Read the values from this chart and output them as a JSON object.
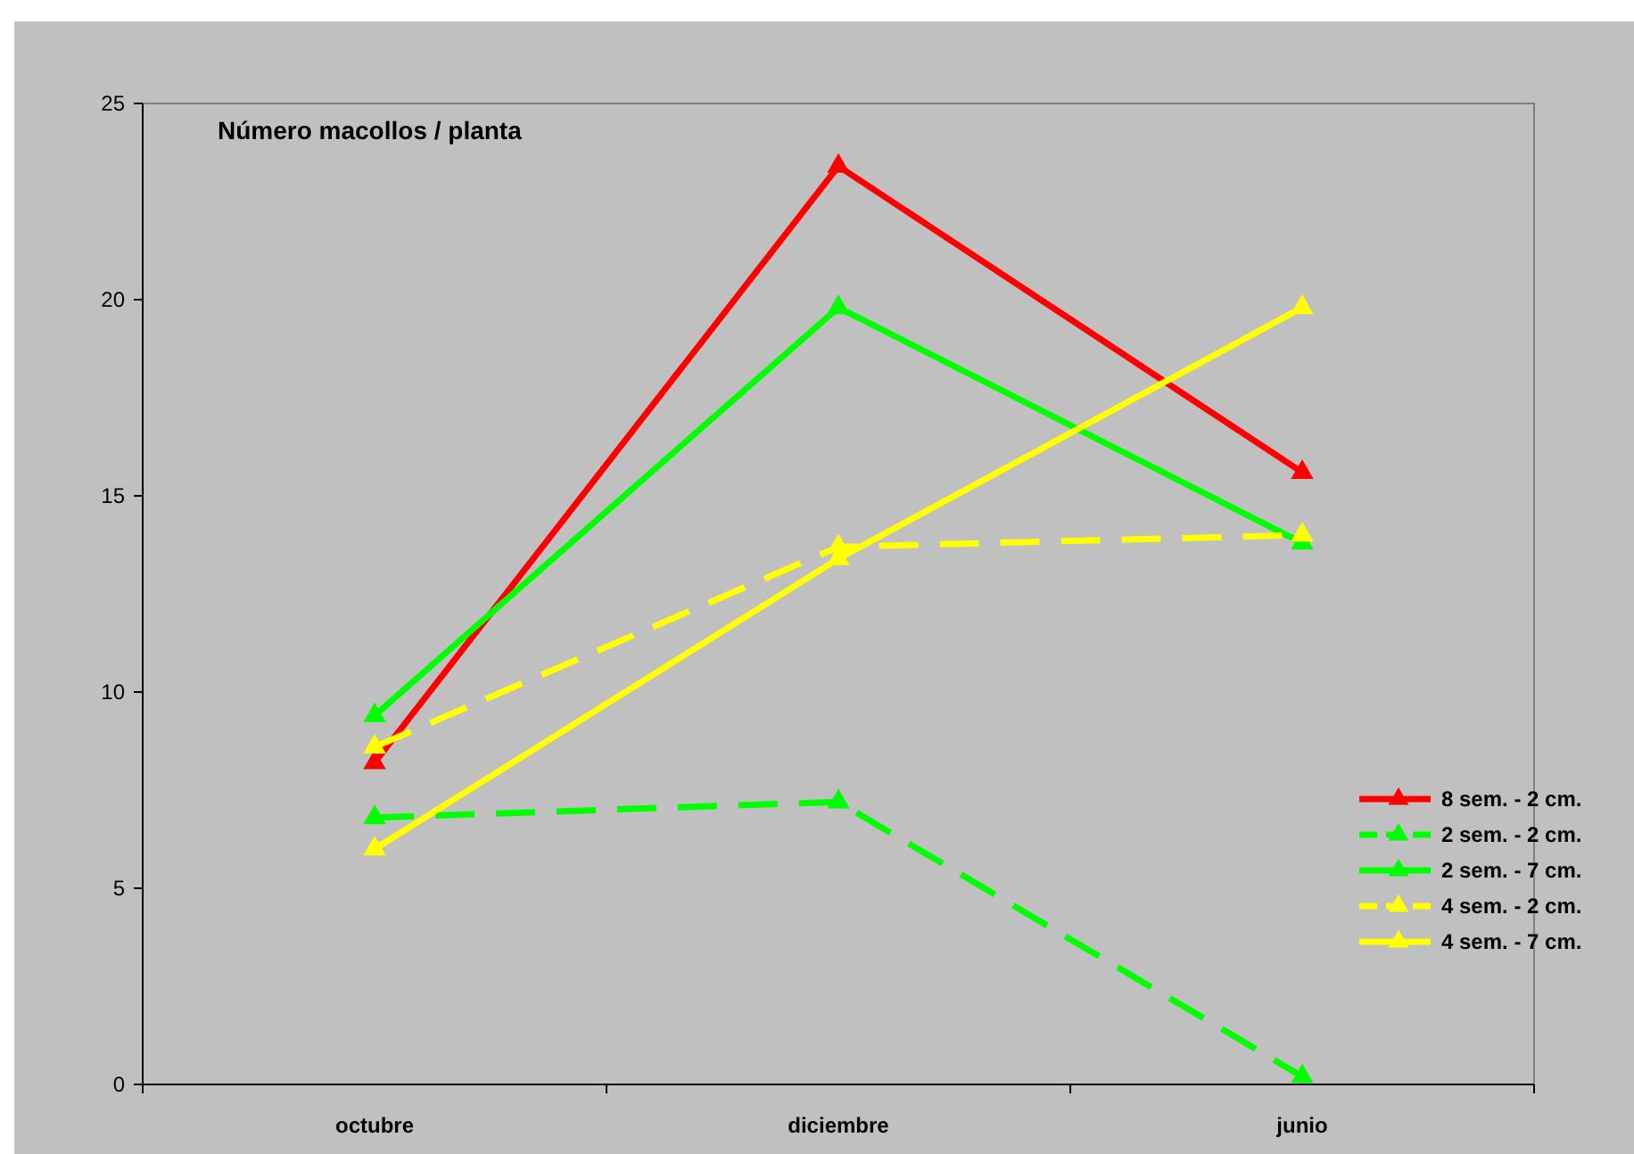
{
  "chart_data": {
    "type": "line",
    "title": "Número macollos / planta",
    "categories": [
      "octubre",
      "diciembre",
      "junio"
    ],
    "series": [
      {
        "name": "8 sem. - 2 cm.",
        "color": "#ff0000",
        "values": [
          8.2,
          23.4,
          15.6
        ],
        "line_style": "solid"
      },
      {
        "name": "2 sem. - 2 cm.",
        "color": "#00ff00",
        "values": [
          6.8,
          7.2,
          0.2
        ],
        "line_style": "dashed"
      },
      {
        "name": "2 sem. - 7 cm.",
        "color": "#00ff00",
        "values": [
          9.4,
          19.8,
          13.8
        ],
        "line_style": "solid"
      },
      {
        "name": "4 sem. - 2 cm.",
        "color": "#ffff00",
        "values": [
          8.6,
          13.7,
          14.0
        ],
        "line_style": "dashed"
      },
      {
        "name": "4 sem. - 7 cm.",
        "color": "#ffff00",
        "values": [
          6.0,
          13.4,
          19.8
        ],
        "line_style": "solid"
      }
    ],
    "ylim": [
      0,
      25
    ],
    "yticks": [
      0,
      5,
      10,
      15,
      20,
      25
    ],
    "marker": "triangle",
    "legend": "right",
    "grid": false
  }
}
